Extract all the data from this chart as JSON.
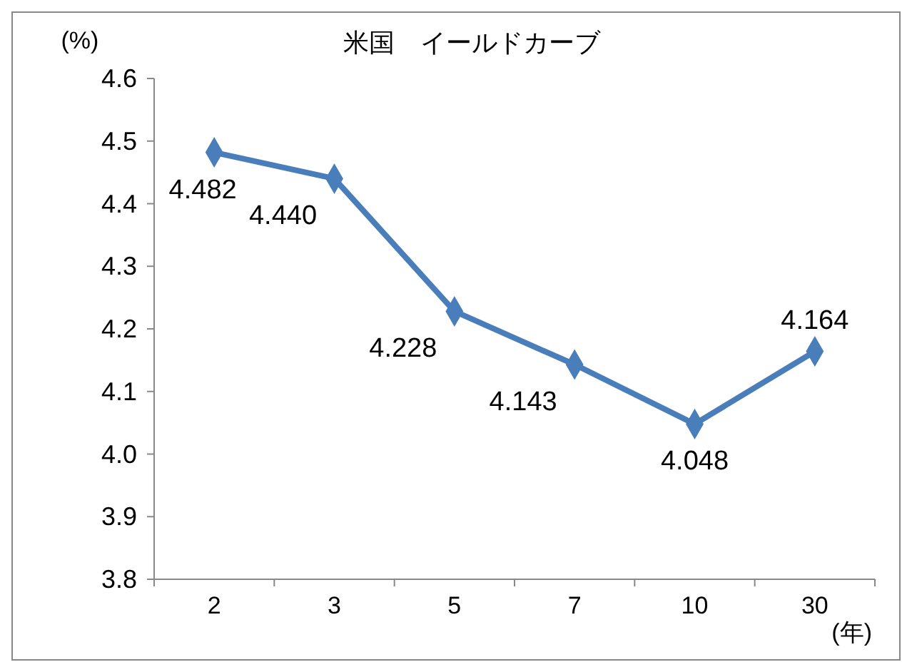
{
  "chart_data": {
    "type": "line",
    "title": "米国　イールドカーブ",
    "ylabel": "(%)",
    "xlabel": "(年)",
    "categories": [
      "2",
      "3",
      "5",
      "7",
      "10",
      "30"
    ],
    "series": [
      {
        "color": "#4a7ebb",
        "values": [
          4.482,
          4.44,
          4.228,
          4.143,
          4.048,
          4.164
        ],
        "value_labels": [
          "4.482",
          "4.440",
          "4.228",
          "4.143",
          "4.048",
          "4.164"
        ]
      }
    ],
    "ylim": [
      3.8,
      4.6
    ],
    "yticks": [
      {
        "value": 3.8,
        "label": "3.8"
      },
      {
        "value": 3.9,
        "label": "3.9"
      },
      {
        "value": 4.0,
        "label": "4.0"
      },
      {
        "value": 4.1,
        "label": "4.1"
      },
      {
        "value": 4.2,
        "label": "4.2"
      },
      {
        "value": 4.3,
        "label": "4.3"
      },
      {
        "value": 4.4,
        "label": "4.4"
      },
      {
        "value": 4.5,
        "label": "4.5"
      },
      {
        "value": 4.6,
        "label": "4.6"
      }
    ],
    "marker": "diamond",
    "line_style": "solid",
    "grid": false
  }
}
